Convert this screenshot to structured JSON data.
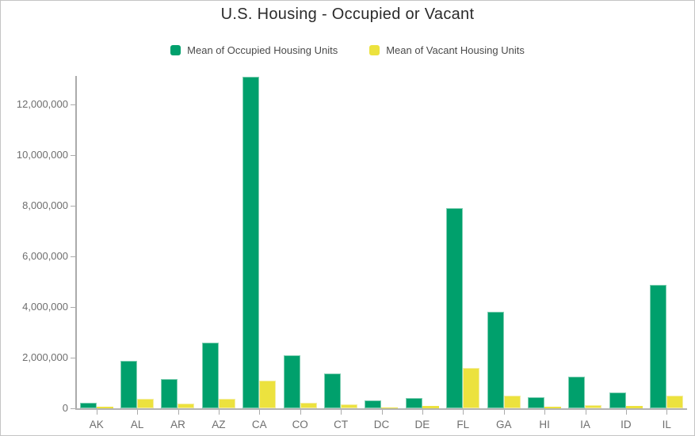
{
  "chart_data": {
    "type": "bar",
    "title": "U.S. Housing - Occupied or Vacant",
    "categories": [
      "AK",
      "AL",
      "AR",
      "AZ",
      "CA",
      "CO",
      "CT",
      "DC",
      "DE",
      "FL",
      "GA",
      "HI",
      "IA",
      "ID",
      "IL"
    ],
    "series": [
      {
        "name": "Mean of Occupied Housing Units",
        "color": "#00a06c",
        "stroke": "#7fceb2",
        "values": [
          230000,
          1870000,
          1150000,
          2600000,
          13100000,
          2100000,
          1370000,
          300000,
          400000,
          7900000,
          3800000,
          450000,
          1250000,
          620000,
          4870000
        ]
      },
      {
        "name": "Mean of Vacant Housing Units",
        "color": "#ece23e",
        "stroke": "#f4eda0",
        "values": [
          50000,
          380000,
          190000,
          380000,
          1090000,
          230000,
          150000,
          30000,
          90000,
          1590000,
          490000,
          60000,
          130000,
          90000,
          490000
        ]
      }
    ],
    "xlabel": "",
    "ylabel": "",
    "ylim": [
      0,
      13125000
    ],
    "yticks": [
      0,
      2000000,
      4000000,
      6000000,
      8000000,
      10000000,
      12000000
    ],
    "ytick_labels": [
      "0",
      "2,000,000",
      "4,000,000",
      "6,000,000",
      "8,000,000",
      "10,000,000",
      "12,000,000"
    ],
    "legend_position": "top",
    "grid": false
  },
  "colors": {
    "axis_line": "#ababab",
    "tick_label": "#6e6e6e",
    "legend_text": "#4a4a4a",
    "title_text": "#2b2b2b",
    "frame_border": "#c4c4c4",
    "background": "#ffffff"
  }
}
